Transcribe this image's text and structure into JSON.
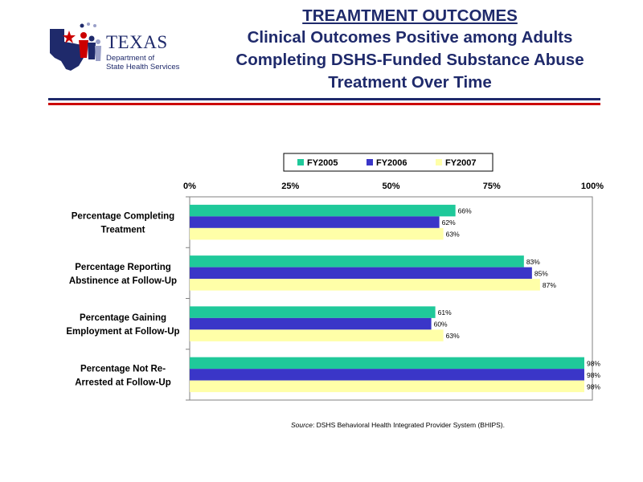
{
  "logo": {
    "wordmark": "TEXAS",
    "line1": "Department of",
    "line2": "State Health Services"
  },
  "title": {
    "main": "TREAMTMENT OUTCOMES",
    "sub": "Clinical Outcomes Positive among Adults Completing DSHS-Funded Substance Abuse Treatment Over Time"
  },
  "source": {
    "label": "Source",
    "text": ": DSHS Behavioral Health Integrated Provider System (BHIPS)."
  },
  "colors": {
    "navy": "#1f2a6b",
    "red": "#cc0000"
  },
  "chart_data": {
    "type": "bar",
    "orientation": "horizontal",
    "categories": [
      [
        "Percentage Completing",
        "Treatment"
      ],
      [
        "Percentage Reporting",
        "Abstinence at Follow-Up"
      ],
      [
        "Percentage Gaining",
        "Employment at Follow-Up"
      ],
      [
        "Percentage Not Re-",
        "Arrested at Follow-Up"
      ]
    ],
    "series": [
      {
        "name": "FY2005",
        "color": "#1fc99a",
        "values": [
          66,
          83,
          61,
          98
        ]
      },
      {
        "name": "FY2006",
        "color": "#3a36c8",
        "values": [
          62,
          85,
          60,
          98
        ]
      },
      {
        "name": "FY2007",
        "color": "#ffffa8",
        "values": [
          63,
          87,
          63,
          98
        ]
      }
    ],
    "data_labels": [
      [
        "66%",
        "83%",
        "61%",
        "98%"
      ],
      [
        "62%",
        "85%",
        "60%",
        "98%"
      ],
      [
        "63%",
        "87%",
        "63%",
        "98%"
      ]
    ],
    "xlim": [
      0,
      100
    ],
    "xticks": [
      0,
      25,
      50,
      75,
      100
    ],
    "xtick_labels": [
      "0%",
      "25%",
      "50%",
      "75%",
      "100%"
    ],
    "x_axis_position": "top",
    "grid": false,
    "legend": "top"
  }
}
